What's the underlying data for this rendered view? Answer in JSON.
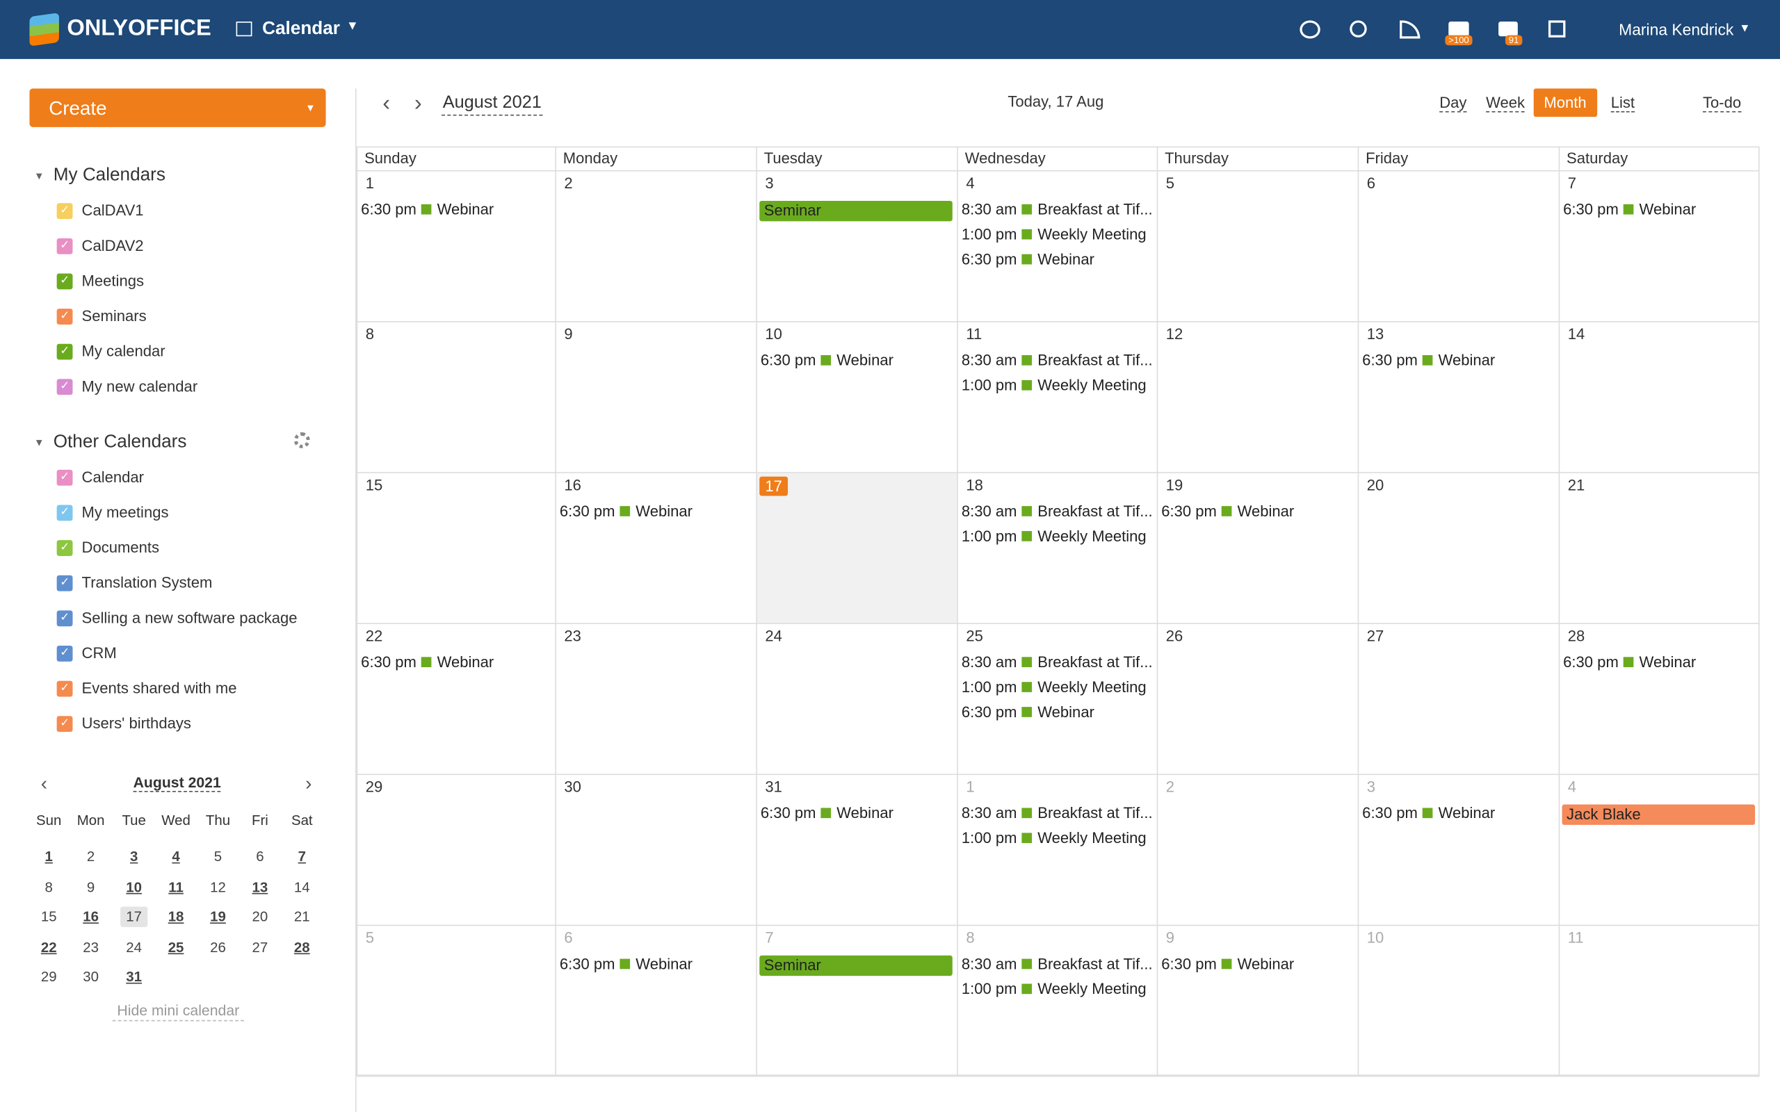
{
  "header": {
    "logo": "ONLYOFFICE",
    "module": "Calendar",
    "mail_badge": ">100",
    "chat_badge": "91",
    "user": "Marina Kendrick"
  },
  "sidebar": {
    "create": "Create",
    "my_calendars": {
      "title": "My Calendars",
      "items": [
        {
          "name": "CalDAV1",
          "color": "#f7cf5e"
        },
        {
          "name": "CalDAV2",
          "color": "#e98fc4"
        },
        {
          "name": "Meetings",
          "color": "#6aab1e"
        },
        {
          "name": "Seminars",
          "color": "#f58a4f"
        },
        {
          "name": "My calendar",
          "color": "#6aab1e"
        },
        {
          "name": "My new calendar",
          "color": "#d98bd2"
        }
      ]
    },
    "other_calendars": {
      "title": "Other Calendars",
      "items": [
        {
          "name": "Calendar",
          "color": "#e98fc4"
        },
        {
          "name": "My meetings",
          "color": "#7fc6ef"
        },
        {
          "name": "Documents",
          "color": "#8dc63f"
        },
        {
          "name": "Translation System",
          "color": "#5f8fcf"
        },
        {
          "name": "Selling a new software package",
          "color": "#5f8fcf"
        },
        {
          "name": "CRM",
          "color": "#5f8fcf"
        },
        {
          "name": "Events shared with me",
          "color": "#f58a4f"
        },
        {
          "name": "Users' birthdays",
          "color": "#f58a4f"
        }
      ]
    },
    "mini_calendar": {
      "title": "August 2021",
      "weekdays": [
        "Sun",
        "Mon",
        "Tue",
        "Wed",
        "Thu",
        "Fri",
        "Sat"
      ],
      "weeks": [
        [
          {
            "d": 1,
            "b": true
          },
          2,
          {
            "d": 3,
            "b": true
          },
          {
            "d": 4,
            "b": true
          },
          5,
          6,
          {
            "d": 7,
            "b": true
          }
        ],
        [
          8,
          9,
          {
            "d": 10,
            "b": true
          },
          {
            "d": 11,
            "b": true
          },
          12,
          {
            "d": 13,
            "b": true
          },
          14
        ],
        [
          15,
          {
            "d": 16,
            "b": true
          },
          {
            "d": 17,
            "today": true
          },
          {
            "d": 18,
            "b": true
          },
          {
            "d": 19,
            "b": true
          },
          20,
          21
        ],
        [
          {
            "d": 22,
            "b": true
          },
          23,
          24,
          {
            "d": 25,
            "b": true
          },
          26,
          27,
          {
            "d": 28,
            "b": true
          }
        ],
        [
          29,
          30,
          {
            "d": 31,
            "b": true
          }
        ]
      ],
      "hide": "Hide mini calendar"
    }
  },
  "toolbar": {
    "month": "August 2021",
    "today": "Today, 17 Aug",
    "views": [
      "Day",
      "Week",
      "Month",
      "List"
    ],
    "active_view": "Month",
    "todo": "To-do"
  },
  "month": {
    "weekdays": [
      "Sunday",
      "Monday",
      "Tuesday",
      "Wednesday",
      "Thursday",
      "Friday",
      "Saturday"
    ],
    "event_color": "#6aab1e",
    "weeks": [
      [
        {
          "d": 1,
          "events": [
            {
              "time": "6:30 pm",
              "title": "Webinar"
            }
          ]
        },
        {
          "d": 2
        },
        {
          "d": 3,
          "events": [
            {
              "title": "Seminar",
              "bar": "#6aab1e"
            }
          ]
        },
        {
          "d": 4,
          "events": [
            {
              "time": "8:30 am",
              "title": "Breakfast at Tif..."
            },
            {
              "time": "1:00 pm",
              "title": "Weekly Meeting"
            },
            {
              "time": "6:30 pm",
              "title": "Webinar"
            }
          ]
        },
        {
          "d": 5
        },
        {
          "d": 6
        },
        {
          "d": 7,
          "events": [
            {
              "time": "6:30 pm",
              "title": "Webinar"
            }
          ]
        }
      ],
      [
        {
          "d": 8
        },
        {
          "d": 9
        },
        {
          "d": 10,
          "events": [
            {
              "time": "6:30 pm",
              "title": "Webinar"
            }
          ]
        },
        {
          "d": 11,
          "events": [
            {
              "time": "8:30 am",
              "title": "Breakfast at Tif..."
            },
            {
              "time": "1:00 pm",
              "title": "Weekly Meeting"
            }
          ]
        },
        {
          "d": 12
        },
        {
          "d": 13,
          "events": [
            {
              "time": "6:30 pm",
              "title": "Webinar"
            }
          ]
        },
        {
          "d": 14
        }
      ],
      [
        {
          "d": 15
        },
        {
          "d": 16,
          "events": [
            {
              "time": "6:30 pm",
              "title": "Webinar"
            }
          ]
        },
        {
          "d": 17,
          "today": true
        },
        {
          "d": 18,
          "events": [
            {
              "time": "8:30 am",
              "title": "Breakfast at Tif..."
            },
            {
              "time": "1:00 pm",
              "title": "Weekly Meeting"
            }
          ]
        },
        {
          "d": 19,
          "events": [
            {
              "time": "6:30 pm",
              "title": "Webinar"
            }
          ]
        },
        {
          "d": 20
        },
        {
          "d": 21
        }
      ],
      [
        {
          "d": 22,
          "events": [
            {
              "time": "6:30 pm",
              "title": "Webinar"
            }
          ]
        },
        {
          "d": 23
        },
        {
          "d": 24
        },
        {
          "d": 25,
          "events": [
            {
              "time": "8:30 am",
              "title": "Breakfast at Tif..."
            },
            {
              "time": "1:00 pm",
              "title": "Weekly Meeting"
            },
            {
              "time": "6:30 pm",
              "title": "Webinar"
            }
          ]
        },
        {
          "d": 26
        },
        {
          "d": 27
        },
        {
          "d": 28,
          "events": [
            {
              "time": "6:30 pm",
              "title": "Webinar"
            }
          ]
        }
      ],
      [
        {
          "d": 29
        },
        {
          "d": 30
        },
        {
          "d": 31,
          "events": [
            {
              "time": "6:30 pm",
              "title": "Webinar"
            }
          ]
        },
        {
          "d": 1,
          "muted": true,
          "events": [
            {
              "time": "8:30 am",
              "title": "Breakfast at Tif..."
            },
            {
              "time": "1:00 pm",
              "title": "Weekly Meeting"
            }
          ]
        },
        {
          "d": 2,
          "muted": true
        },
        {
          "d": 3,
          "muted": true,
          "events": [
            {
              "time": "6:30 pm",
              "title": "Webinar"
            }
          ]
        },
        {
          "d": 4,
          "muted": true,
          "events": [
            {
              "title": "Jack Blake",
              "bar": "#f58a5a"
            }
          ]
        }
      ],
      [
        {
          "d": 5,
          "muted": true
        },
        {
          "d": 6,
          "muted": true,
          "events": [
            {
              "time": "6:30 pm",
              "title": "Webinar"
            }
          ]
        },
        {
          "d": 7,
          "muted": true,
          "events": [
            {
              "title": "Seminar",
              "bar": "#6aab1e"
            }
          ]
        },
        {
          "d": 8,
          "muted": true,
          "events": [
            {
              "time": "8:30 am",
              "title": "Breakfast at Tif..."
            },
            {
              "time": "1:00 pm",
              "title": "Weekly Meeting"
            }
          ]
        },
        {
          "d": 9,
          "muted": true,
          "events": [
            {
              "time": "6:30 pm",
              "title": "Webinar"
            }
          ]
        },
        {
          "d": 10,
          "muted": true
        },
        {
          "d": 11,
          "muted": true
        }
      ]
    ]
  }
}
